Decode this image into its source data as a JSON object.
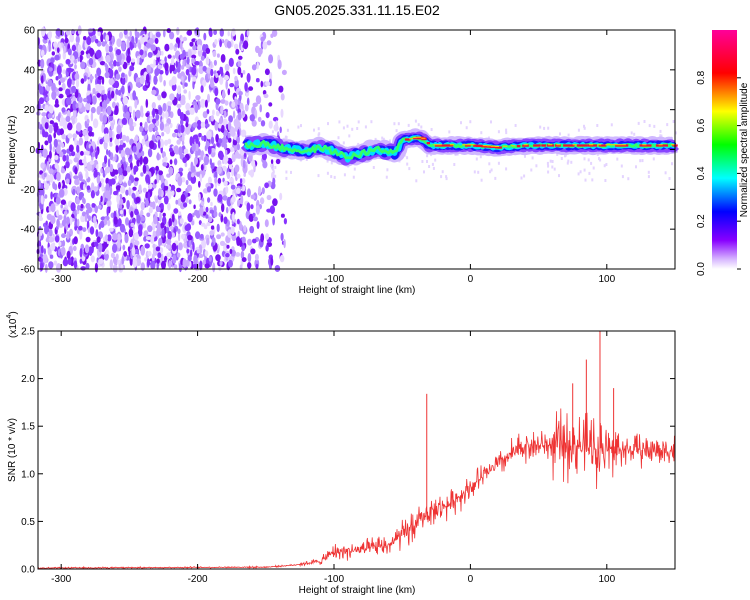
{
  "title": "GN05.2025.331.11.15.E02",
  "chart_data": [
    {
      "type": "heatmap",
      "name": "spectrogram",
      "xlabel": "Height of straight line (km)",
      "ylabel": "Frequency (Hz)",
      "xlim": [
        -317,
        150
      ],
      "ylim": [
        -60,
        60
      ],
      "xticks": [
        -300,
        -200,
        -100,
        0,
        100
      ],
      "yticks": [
        -60,
        -40,
        -20,
        0,
        20,
        40,
        60
      ],
      "colorbar": {
        "label": "Normalized spectral amplitude",
        "range": [
          0,
          1
        ],
        "ticks": [
          0.0,
          0.2,
          0.4,
          0.6,
          0.8
        ],
        "colors": [
          "#ffffff",
          "#8800ff",
          "#0000ff",
          "#00ffff",
          "#00ff00",
          "#ffff00",
          "#ff0000",
          "#ff00aa"
        ]
      },
      "noise_region": [
        -317,
        -150
      ],
      "signal_track": {
        "x": [
          -165,
          -150,
          -140,
          -130,
          -120,
          -110,
          -100,
          -90,
          -80,
          -70,
          -60,
          -55,
          -50,
          -45,
          -40,
          -35,
          -30,
          -20,
          -10,
          0,
          20,
          40,
          60,
          80,
          100,
          120,
          150
        ],
        "y": [
          2,
          3,
          1,
          0,
          -1,
          1,
          -1,
          -4,
          -2,
          0,
          -1,
          -2,
          5,
          5,
          6,
          5,
          2,
          2,
          2,
          2,
          1,
          2,
          2,
          2,
          2,
          2,
          2
        ]
      }
    },
    {
      "type": "line",
      "name": "snr",
      "xlabel": "Height of straight line (km)",
      "ylabel": "SNR (10 * v/v)",
      "y_multiplier": "(x10",
      "y_exponent": "4",
      "xlim": [
        -317,
        150
      ],
      "ylim": [
        0,
        2.5
      ],
      "xticks": [
        -300,
        -200,
        -100,
        0,
        100
      ],
      "yticks": [
        0.0,
        0.5,
        1.0,
        1.5,
        2.0,
        2.5
      ],
      "color": "#ee3333",
      "envelope": {
        "x": [
          -317,
          -150,
          -130,
          -110,
          -100,
          -80,
          -60,
          -45,
          -35,
          -30,
          -25,
          -15,
          -5,
          5,
          20,
          30,
          40,
          60,
          80,
          100,
          120,
          150
        ],
        "y": [
          0.01,
          0.02,
          0.04,
          0.08,
          0.18,
          0.2,
          0.25,
          0.4,
          0.55,
          0.6,
          0.62,
          0.68,
          0.8,
          0.92,
          1.1,
          1.2,
          1.3,
          1.3,
          1.3,
          1.25,
          1.25,
          1.25
        ]
      },
      "spikes": [
        {
          "x": -32,
          "y": 1.84
        },
        {
          "x": 85,
          "y": 2.2
        },
        {
          "x": 95,
          "y": 2.5
        },
        {
          "x": 75,
          "y": 1.95
        },
        {
          "x": 105,
          "y": 1.9
        }
      ]
    }
  ]
}
